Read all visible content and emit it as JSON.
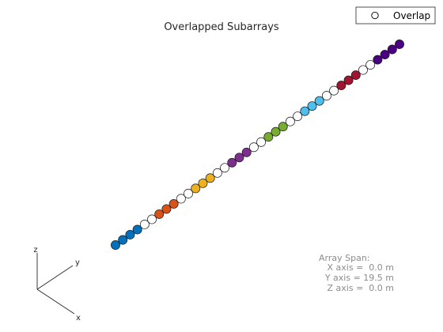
{
  "chart_data": {
    "type": "scatter",
    "title": "Overlapped Subarrays",
    "projection": "3d-isometric",
    "legend": {
      "position": "top-right",
      "label": "Overlap",
      "marker_color": "#ffffff"
    },
    "axes_labels": {
      "x": "x",
      "y": "y",
      "z": "z"
    },
    "element_count": 40,
    "element_spacing_m": 0.5,
    "y_range_m": [
      -9.75,
      9.75
    ],
    "elements": [
      {
        "y": -9.75,
        "color": "#0072BD"
      },
      {
        "y": -9.25,
        "color": "#0072BD"
      },
      {
        "y": -8.75,
        "color": "#0072BD"
      },
      {
        "y": -8.25,
        "color": "#0072BD"
      },
      {
        "y": -7.75,
        "color": "#ffffff"
      },
      {
        "y": -7.25,
        "color": "#ffffff"
      },
      {
        "y": -6.75,
        "color": "#D95319"
      },
      {
        "y": -6.25,
        "color": "#D95319"
      },
      {
        "y": -5.75,
        "color": "#D95319"
      },
      {
        "y": -5.25,
        "color": "#ffffff"
      },
      {
        "y": -4.75,
        "color": "#ffffff"
      },
      {
        "y": -4.25,
        "color": "#EDB120"
      },
      {
        "y": -3.75,
        "color": "#EDB120"
      },
      {
        "y": -3.25,
        "color": "#EDB120"
      },
      {
        "y": -2.75,
        "color": "#ffffff"
      },
      {
        "y": -2.25,
        "color": "#ffffff"
      },
      {
        "y": -1.75,
        "color": "#7E2F8E"
      },
      {
        "y": -1.25,
        "color": "#7E2F8E"
      },
      {
        "y": -0.75,
        "color": "#7E2F8E"
      },
      {
        "y": -0.25,
        "color": "#ffffff"
      },
      {
        "y": 0.25,
        "color": "#ffffff"
      },
      {
        "y": 0.75,
        "color": "#77AC30"
      },
      {
        "y": 1.25,
        "color": "#77AC30"
      },
      {
        "y": 1.75,
        "color": "#77AC30"
      },
      {
        "y": 2.25,
        "color": "#ffffff"
      },
      {
        "y": 2.75,
        "color": "#ffffff"
      },
      {
        "y": 3.25,
        "color": "#4DBEEE"
      },
      {
        "y": 3.75,
        "color": "#4DBEEE"
      },
      {
        "y": 4.25,
        "color": "#4DBEEE"
      },
      {
        "y": 4.75,
        "color": "#ffffff"
      },
      {
        "y": 5.25,
        "color": "#ffffff"
      },
      {
        "y": 5.75,
        "color": "#A2142F"
      },
      {
        "y": 6.25,
        "color": "#A2142F"
      },
      {
        "y": 6.75,
        "color": "#A2142F"
      },
      {
        "y": 7.25,
        "color": "#ffffff"
      },
      {
        "y": 7.75,
        "color": "#ffffff"
      },
      {
        "y": 8.25,
        "color": "#4B0082"
      },
      {
        "y": 8.75,
        "color": "#4B0082"
      },
      {
        "y": 9.25,
        "color": "#4B0082"
      },
      {
        "y": 9.75,
        "color": "#4B0082"
      }
    ],
    "array_span": {
      "heading": "Array Span:",
      "lines": [
        "X axis =  0.0 m",
        "Y axis = 19.5 m",
        "Z axis =  0.0 m"
      ]
    }
  }
}
